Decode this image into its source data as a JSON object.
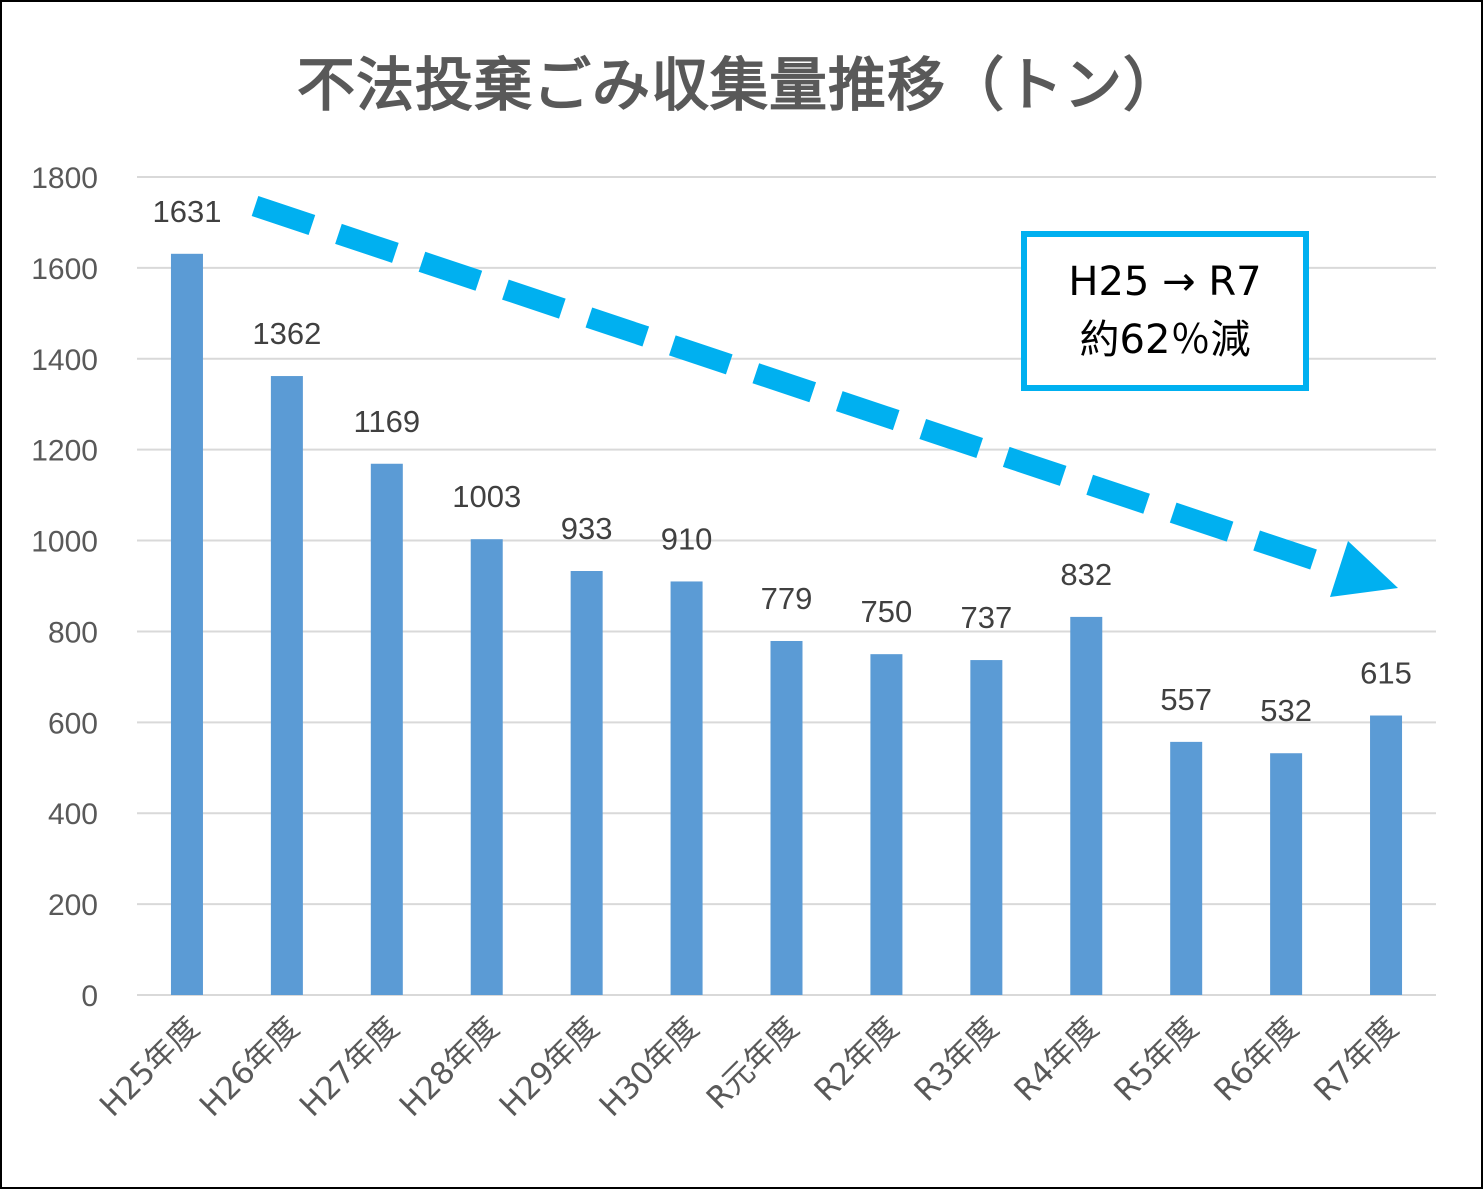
{
  "chart_data": {
    "type": "bar",
    "title": "不法投棄ごみ収集量推移（トン）",
    "categories": [
      "H25年度",
      "H26年度",
      "H27年度",
      "H28年度",
      "H29年度",
      "H30年度",
      "R元年度",
      "R2年度",
      "R3年度",
      "R4年度",
      "R5年度",
      "R6年度",
      "R7年度"
    ],
    "values": [
      1631,
      1362,
      1169,
      1003,
      933,
      910,
      779,
      750,
      737,
      832,
      557,
      532,
      615
    ],
    "yticks": [
      0,
      200,
      400,
      600,
      800,
      1000,
      1200,
      1400,
      1600,
      1800
    ],
    "ylim": [
      0,
      1800
    ],
    "grid": true,
    "bar_color": "#5b9bd5",
    "gridline_color": "#d9d9d9",
    "trend_arrow_color": "#00b0f0",
    "callout": {
      "line1": "H25 → R7",
      "line2": "約62％減",
      "border_color": "#00b0f0"
    }
  }
}
